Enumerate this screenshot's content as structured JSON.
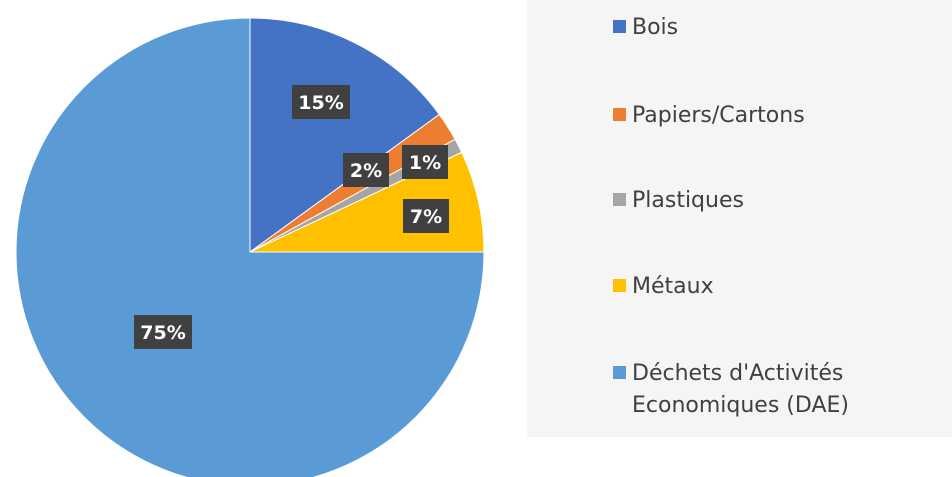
{
  "chart_data": {
    "type": "pie",
    "categories": [
      "Bois",
      "Papiers/Cartons",
      "Plastiques",
      "Métaux",
      "Déchets d'Activités Economiques (DAE)"
    ],
    "values": [
      15,
      2,
      1,
      7,
      75
    ],
    "data_labels": [
      "15%",
      "2%",
      "1%",
      "7%",
      "75%"
    ],
    "colors": [
      "#4472c4",
      "#ed7d31",
      "#a5a5a5",
      "#ffc000",
      "#5b9bd5"
    ],
    "start_angle_deg": 0,
    "direction": "clockwise",
    "legend_position": "right",
    "title": ""
  },
  "legend": {
    "items": [
      {
        "label": "Bois",
        "color": "#4472c4"
      },
      {
        "label": "Papiers/Cartons",
        "color": "#ed7d31"
      },
      {
        "label": "Plastiques",
        "color": "#a5a5a5"
      },
      {
        "label": "Métaux",
        "color": "#ffc000"
      },
      {
        "label": "Déchets d'Activités Economiques (DAE)",
        "color": "#5b9bd5"
      }
    ]
  }
}
